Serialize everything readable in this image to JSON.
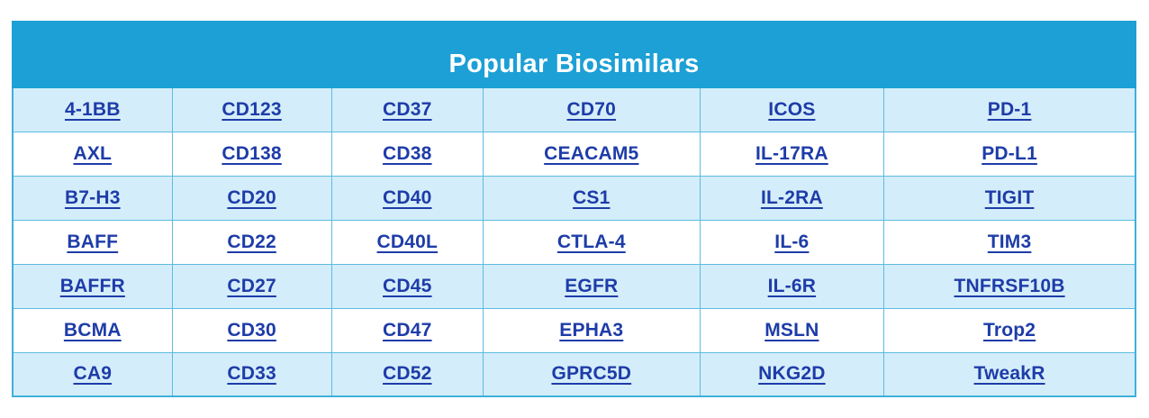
{
  "table": {
    "title": "Popular Biosimilars",
    "rows": [
      [
        "4-1BB",
        "CD123",
        "CD37",
        "CD70",
        "ICOS",
        "PD-1"
      ],
      [
        "AXL",
        "CD138",
        "CD38",
        "CEACAM5",
        "IL-17RA",
        "PD-L1"
      ],
      [
        "B7-H3",
        "CD20",
        "CD40",
        "CS1",
        "IL-2RA",
        "TIGIT"
      ],
      [
        "BAFF",
        "CD22",
        "CD40L",
        "CTLA-4",
        "IL-6",
        "TIM3"
      ],
      [
        "BAFFR",
        "CD27",
        "CD45",
        "EGFR",
        "IL-6R",
        "TNFRSF10B"
      ],
      [
        "BCMA",
        "CD30",
        "CD47",
        "EPHA3",
        "MSLN",
        "Trop2"
      ],
      [
        "CA9",
        "CD33",
        "CD52",
        "GPRC5D",
        "NKG2D",
        "TweakR"
      ]
    ],
    "colors": {
      "header_bg": "#1CA0D5",
      "row_odd_bg": "#D4EDFA",
      "row_even_bg": "#FFFFFF",
      "border": "#5BBCE1",
      "outer_border": "#3FB0DC",
      "link": "#1E3CA8",
      "title_text": "#FFFFFF"
    }
  }
}
